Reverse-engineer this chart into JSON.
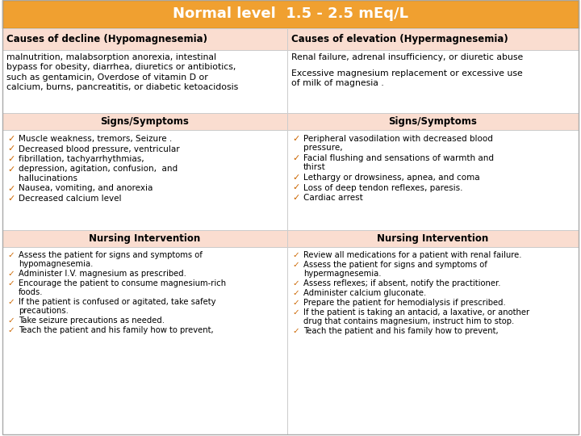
{
  "title": "Normal level  1.5 - 2.5 mEq/L",
  "title_bg": "#F0A030",
  "title_color": "#FFFFFF",
  "col_header_bg": "#FADDD0",
  "subheader_bg": "#FADDD0",
  "row_bg": "#FFFFFF",
  "border_color": "#CCCCCC",
  "col1_header": "Causes of decline (Hypomagnesemia)",
  "col2_header": "Causes of elevation (Hypermagnesemia)",
  "col1_causes": "malnutrition, malabsorption anorexia, intestinal\nbypass for obesity, diarrhea, diuretics or antibiotics,\nsuch as gentamicin, Overdose of vitamin D or\ncalcium, burns, pancreatitis, or diabetic ketoacidosis",
  "col2_causes_1": "Renal failure, adrenal insufficiency, or diuretic abuse",
  "col2_causes_2": "Excessive magnesium replacement or excessive use\nof milk of magnesia .",
  "signs_header": "Signs/Symptoms",
  "col1_signs": [
    "Muscle weakness, tremors, Seizure .",
    "Decreased blood pressure, ventricular",
    "fibrillation, tachyarrhythmias,",
    "depression, agitation, confusion,  and\nhallucinations",
    "Nausea, vomiting, and anorexia",
    "Decreased calcium level"
  ],
  "col2_signs": [
    "Peripheral vasodilation with decreased blood\npressure,",
    "Facial flushing and sensations of warmth and\nthirst",
    "Lethargy or drowsiness, apnea, and coma",
    "Loss of deep tendon reflexes, paresis.",
    "Cardiac arrest"
  ],
  "nursing_header": "Nursing Intervention",
  "col1_nursing": [
    "Assess the patient for signs and symptoms of\nhypomagnesemia.",
    "Administer I.V. magnesium as prescribed.",
    "Encourage the patient to consume magnesium-rich\nfoods.",
    "If the patient is confused or agitated, take safety\nprecautions.",
    "Take seizure precautions as needed.",
    "Teach the patient and his family how to prevent,"
  ],
  "col2_nursing": [
    "Review all medications for a patient with renal failure.",
    "Assess the patient for signs and symptoms of\nhypermagnesemia.",
    "Assess reflexes; if absent, notify the practitioner.",
    "Administer calcium gluconate.",
    "Prepare the patient for hemodialysis if prescribed.",
    "If the patient is taking an antacid, a laxative, or another\ndrug that contains magnesium, instruct him to stop.",
    "Teach the patient and his family how to prevent,"
  ],
  "checkmark_color": "#CC6600",
  "ck": "✓"
}
